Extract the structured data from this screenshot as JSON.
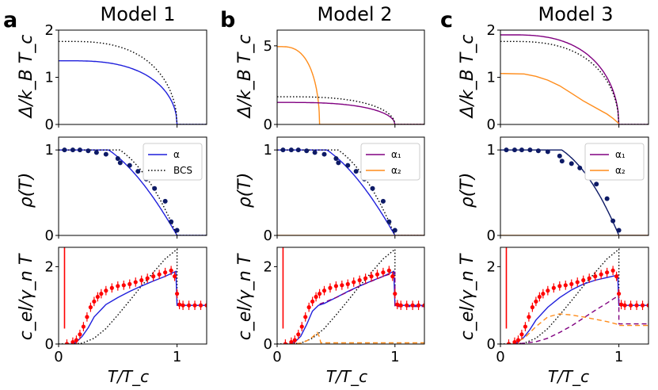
{
  "figure": {
    "columns": [
      {
        "panel_letter": "a",
        "title": "Model 1"
      },
      {
        "panel_letter": "b",
        "title": "Model 2"
      },
      {
        "panel_letter": "c",
        "title": "Model 3"
      }
    ],
    "y_labels": {
      "gap": "Δ/k_B T_c",
      "rho": "ρ(T)",
      "cel": "c_el/γ_n T"
    },
    "x_label": "T/T_c",
    "colors": {
      "alpha": "#1f1fdc",
      "alpha1": "#800080",
      "alpha2": "#ff8c1a",
      "bcs": "#000000",
      "data": "#0d1a66",
      "exp": "#ff0000"
    }
  },
  "chart_data": [
    {
      "type": "line",
      "panel": "a",
      "row": "gap",
      "xlim": [
        0,
        1.25
      ],
      "ylim": [
        0,
        2
      ],
      "xticks": [],
      "yticks": [
        0,
        1,
        2
      ],
      "series": [
        {
          "name": "α",
          "kind": "bcs_gap",
          "delta0": 1.35,
          "color": "alpha"
        },
        {
          "name": "BCS",
          "kind": "bcs_gap",
          "delta0": 1.76,
          "color": "bcs",
          "dash": "dot"
        }
      ]
    },
    {
      "type": "line",
      "panel": "b",
      "row": "gap",
      "xlim": [
        0,
        1.25
      ],
      "ylim": [
        0,
        6
      ],
      "xticks": [],
      "yticks": [
        0,
        5
      ],
      "series": [
        {
          "name": "α₂",
          "kind": "bcs_gap",
          "delta0": 4.95,
          "tc": 0.36,
          "color": "alpha2"
        },
        {
          "name": "α₁",
          "kind": "bcs_gap",
          "delta0": 1.4,
          "color": "alpha1"
        },
        {
          "name": "BCS",
          "kind": "bcs_gap",
          "delta0": 1.76,
          "color": "bcs",
          "dash": "dot"
        }
      ]
    },
    {
      "type": "line",
      "panel": "c",
      "row": "gap",
      "xlim": [
        0,
        1.25
      ],
      "ylim": [
        0,
        2
      ],
      "xticks": [],
      "yticks": [
        0,
        1,
        2
      ],
      "series": [
        {
          "name": "α₁",
          "kind": "bcs_gap",
          "delta0": 1.9,
          "color": "alpha1"
        },
        {
          "name": "BCS",
          "kind": "bcs_gap",
          "delta0": 1.76,
          "color": "bcs",
          "dash": "dot"
        },
        {
          "name": "α₂",
          "kind": "points",
          "x": [
            0,
            0.2,
            0.3,
            0.4,
            0.5,
            0.6,
            0.7,
            0.8,
            0.9,
            0.95,
            1.0
          ],
          "y": [
            1.08,
            1.07,
            1.02,
            0.94,
            0.82,
            0.66,
            0.5,
            0.36,
            0.22,
            0.13,
            0.02
          ],
          "color": "alpha2"
        }
      ]
    },
    {
      "type": "line",
      "panel": "a",
      "row": "rho",
      "xlim": [
        0,
        1.25
      ],
      "ylim": [
        0,
        1.15
      ],
      "xticks": [],
      "yticks": [
        0,
        1
      ],
      "legend": [
        {
          "label": "α",
          "color": "alpha"
        },
        {
          "label": "BCS",
          "color": "bcs",
          "dash": "dot"
        }
      ],
      "series": [
        {
          "name": "α",
          "kind": "rho",
          "p": 2.4,
          "q": 1.25,
          "color": "alpha"
        },
        {
          "name": "BCS",
          "kind": "rho",
          "p": 3.3,
          "q": 1.3,
          "color": "bcs",
          "dash": "dot"
        }
      ],
      "scatter": {
        "x": [
          0.05,
          0.12,
          0.18,
          0.25,
          0.32,
          0.4,
          0.5,
          0.52,
          0.6,
          0.67,
          0.74,
          0.81,
          0.9,
          0.95,
          1.0
        ],
        "y": [
          1.0,
          1.0,
          1.0,
          0.99,
          0.97,
          0.95,
          0.9,
          0.85,
          0.82,
          0.75,
          0.66,
          0.55,
          0.4,
          0.16,
          0.06
        ],
        "color": "data"
      }
    },
    {
      "type": "line",
      "panel": "b",
      "row": "rho",
      "xlim": [
        0,
        1.25
      ],
      "ylim": [
        0,
        1.15
      ],
      "xticks": [],
      "yticks": [
        0,
        1
      ],
      "legend": [
        {
          "label": "α₁",
          "color": "alpha1"
        },
        {
          "label": "α₂",
          "color": "alpha2"
        }
      ],
      "series": [
        {
          "name": "α₁",
          "kind": "rho",
          "p": 2.4,
          "q": 1.25,
          "color": "alpha"
        },
        {
          "name": "BCS",
          "kind": "rho",
          "p": 3.3,
          "q": 1.3,
          "color": "bcs",
          "dash": "dot"
        },
        {
          "name": "α₂",
          "kind": "points",
          "x": [
            0,
            1.25
          ],
          "y": [
            0,
            0
          ],
          "color": "alpha2"
        }
      ],
      "scatter": {
        "x": [
          0.05,
          0.12,
          0.18,
          0.25,
          0.32,
          0.4,
          0.5,
          0.52,
          0.6,
          0.67,
          0.74,
          0.81,
          0.9,
          0.95,
          1.0
        ],
        "y": [
          1.0,
          1.0,
          1.0,
          0.99,
          0.97,
          0.95,
          0.9,
          0.85,
          0.82,
          0.75,
          0.66,
          0.55,
          0.4,
          0.16,
          0.06
        ],
        "color": "data"
      }
    },
    {
      "type": "line",
      "panel": "c",
      "row": "rho",
      "xlim": [
        0,
        1.25
      ],
      "ylim": [
        0,
        1.15
      ],
      "xticks": [],
      "yticks": [
        0,
        1
      ],
      "legend": [
        {
          "label": "α₁",
          "color": "alpha1"
        },
        {
          "label": "α₂",
          "color": "alpha2"
        }
      ],
      "series": [
        {
          "name": "α₁",
          "kind": "rho",
          "p": 3.3,
          "q": 1.3,
          "color": "data"
        },
        {
          "name": "α₂",
          "kind": "points",
          "x": [
            0,
            1.25
          ],
          "y": [
            0,
            0
          ],
          "color": "alpha2"
        }
      ],
      "scatter": {
        "x": [
          0.05,
          0.12,
          0.18,
          0.25,
          0.32,
          0.4,
          0.5,
          0.52,
          0.6,
          0.67,
          0.74,
          0.81,
          0.9,
          0.95,
          1.0
        ],
        "y": [
          1.0,
          1.0,
          1.0,
          1.0,
          0.99,
          0.98,
          0.93,
          0.87,
          0.84,
          0.79,
          0.72,
          0.6,
          0.43,
          0.17,
          0.06
        ],
        "color": "data"
      }
    },
    {
      "type": "line",
      "panel": "a",
      "row": "cel",
      "xlim": [
        0,
        1.25
      ],
      "ylim": [
        0,
        2.5
      ],
      "xticks": [
        0,
        1
      ],
      "yticks": [
        0,
        2
      ],
      "series": [
        {
          "name": "BCS",
          "kind": "points",
          "x": [
            0,
            0.2,
            0.3,
            0.4,
            0.5,
            0.6,
            0.7,
            0.8,
            0.9,
            1.0,
            1.0,
            1.25
          ],
          "y": [
            0,
            0.02,
            0.15,
            0.4,
            0.75,
            1.12,
            1.5,
            1.85,
            2.2,
            2.45,
            1.0,
            1.0
          ],
          "color": "bcs",
          "dash": "dot"
        },
        {
          "name": "α",
          "kind": "points",
          "x": [
            0.1,
            0.15,
            0.2,
            0.25,
            0.3,
            0.4,
            0.5,
            0.6,
            0.7,
            0.8,
            0.9,
            0.99,
            1.0,
            1.25
          ],
          "y": [
            0,
            0.05,
            0.2,
            0.42,
            0.7,
            1.02,
            1.2,
            1.36,
            1.5,
            1.63,
            1.75,
            1.88,
            1.0,
            1.0
          ],
          "color": "alpha"
        }
      ],
      "exp": {
        "x": [
          0.07,
          0.12,
          0.15,
          0.18,
          0.21,
          0.24,
          0.27,
          0.3,
          0.33,
          0.36,
          0.4,
          0.45,
          0.5,
          0.55,
          0.6,
          0.65,
          0.7,
          0.75,
          0.8,
          0.85,
          0.9,
          0.95,
          0.98,
          1.0,
          1.02,
          1.05,
          1.1,
          1.15,
          1.2,
          1.25
        ],
        "y": [
          0,
          0.05,
          0.1,
          0.25,
          0.45,
          0.7,
          0.95,
          1.1,
          1.22,
          1.3,
          1.38,
          1.45,
          1.5,
          1.52,
          1.55,
          1.6,
          1.65,
          1.7,
          1.75,
          1.8,
          1.85,
          1.9,
          1.75,
          1.3,
          1.02,
          1.0,
          1.0,
          1.0,
          1.0,
          1.0
        ],
        "spike": {
          "x": 0.05,
          "y": [
            0.4,
            2.5
          ]
        },
        "color": "exp"
      }
    },
    {
      "type": "line",
      "panel": "b",
      "row": "cel",
      "xlim": [
        0,
        1.25
      ],
      "ylim": [
        0,
        2.5
      ],
      "xticks": [
        0,
        1
      ],
      "yticks": [
        0,
        2
      ],
      "series": [
        {
          "name": "BCS",
          "kind": "points",
          "x": [
            0,
            0.2,
            0.3,
            0.4,
            0.5,
            0.6,
            0.7,
            0.8,
            0.9,
            1.0,
            1.0,
            1.25
          ],
          "y": [
            0,
            0.02,
            0.15,
            0.4,
            0.75,
            1.12,
            1.5,
            1.85,
            2.2,
            2.45,
            1.0,
            1.0
          ],
          "color": "bcs",
          "dash": "dot"
        },
        {
          "name": "α₁",
          "kind": "points",
          "x": [
            0.1,
            0.15,
            0.2,
            0.25,
            0.3,
            0.35,
            0.4,
            0.5,
            0.6,
            0.7,
            0.8,
            0.9,
            0.99,
            1.0,
            1.25
          ],
          "y": [
            0,
            0.05,
            0.2,
            0.5,
            0.85,
            1.0,
            1.05,
            1.2,
            1.36,
            1.5,
            1.63,
            1.75,
            1.88,
            1.0,
            1.0
          ],
          "color": "alpha"
        },
        {
          "name": "α₁",
          "kind": "points",
          "x": [
            0.36,
            0.5,
            0.7,
            0.9,
            1.0,
            1.0,
            1.25
          ],
          "y": [
            1.03,
            1.2,
            1.5,
            1.75,
            1.85,
            0.97,
            0.97
          ],
          "color": "alpha1",
          "dash": "dash"
        },
        {
          "name": "α₂",
          "kind": "points",
          "x": [
            0.1,
            0.2,
            0.25,
            0.3,
            0.34,
            0.36,
            0.37,
            1.25
          ],
          "y": [
            0,
            0.02,
            0.08,
            0.18,
            0.3,
            0.18,
            0.03,
            0.03
          ],
          "color": "alpha2",
          "dash": "dash"
        }
      ],
      "exp": {
        "x": [
          0.07,
          0.12,
          0.15,
          0.18,
          0.21,
          0.24,
          0.27,
          0.3,
          0.33,
          0.36,
          0.4,
          0.45,
          0.5,
          0.55,
          0.6,
          0.65,
          0.7,
          0.75,
          0.8,
          0.85,
          0.9,
          0.95,
          0.98,
          1.0,
          1.02,
          1.05,
          1.1,
          1.15,
          1.2,
          1.25
        ],
        "y": [
          0,
          0.05,
          0.1,
          0.25,
          0.45,
          0.7,
          0.95,
          1.1,
          1.22,
          1.3,
          1.38,
          1.45,
          1.5,
          1.52,
          1.55,
          1.6,
          1.65,
          1.7,
          1.75,
          1.8,
          1.85,
          1.9,
          1.75,
          1.3,
          1.02,
          1.0,
          1.0,
          1.0,
          1.0,
          1.0
        ],
        "spike": {
          "x": 0.05,
          "y": [
            0.4,
            2.5
          ]
        },
        "color": "exp"
      }
    },
    {
      "type": "line",
      "panel": "c",
      "row": "cel",
      "xlim": [
        0,
        1.25
      ],
      "ylim": [
        0,
        2.5
      ],
      "xticks": [
        0,
        1
      ],
      "yticks": [
        0,
        2
      ],
      "series": [
        {
          "name": "BCS",
          "kind": "points",
          "x": [
            0,
            0.2,
            0.3,
            0.4,
            0.5,
            0.6,
            0.7,
            0.8,
            0.9,
            1.0,
            1.0,
            1.25
          ],
          "y": [
            0,
            0.02,
            0.15,
            0.4,
            0.75,
            1.12,
            1.5,
            1.85,
            2.2,
            2.45,
            1.0,
            1.0
          ],
          "color": "bcs",
          "dash": "dot"
        },
        {
          "name": "α",
          "kind": "points",
          "x": [
            0.1,
            0.15,
            0.2,
            0.25,
            0.3,
            0.4,
            0.5,
            0.6,
            0.7,
            0.8,
            0.9,
            0.99,
            1.0,
            1.25
          ],
          "y": [
            0,
            0.05,
            0.18,
            0.38,
            0.62,
            0.95,
            1.2,
            1.4,
            1.55,
            1.65,
            1.72,
            1.78,
            1.0,
            1.0
          ],
          "color": "alpha"
        },
        {
          "name": "α₁",
          "kind": "points",
          "x": [
            0.1,
            0.2,
            0.3,
            0.4,
            0.5,
            0.6,
            0.7,
            0.8,
            0.9,
            0.97,
            1.0,
            1.0,
            1.25
          ],
          "y": [
            0,
            0.02,
            0.06,
            0.15,
            0.3,
            0.47,
            0.67,
            0.87,
            1.06,
            1.2,
            1.15,
            0.52,
            0.52
          ],
          "color": "alpha1",
          "dash": "dash"
        },
        {
          "name": "α₂",
          "kind": "points",
          "x": [
            0.1,
            0.2,
            0.3,
            0.4,
            0.5,
            0.6,
            0.7,
            0.8,
            0.9,
            1.0,
            1.0,
            1.25
          ],
          "y": [
            0,
            0.15,
            0.45,
            0.7,
            0.78,
            0.75,
            0.7,
            0.64,
            0.58,
            0.5,
            0.48,
            0.48
          ],
          "color": "alpha2",
          "dash": "dash"
        }
      ],
      "exp": {
        "x": [
          0.07,
          0.12,
          0.15,
          0.18,
          0.21,
          0.24,
          0.27,
          0.3,
          0.33,
          0.36,
          0.4,
          0.45,
          0.5,
          0.55,
          0.6,
          0.65,
          0.7,
          0.75,
          0.8,
          0.85,
          0.9,
          0.95,
          0.98,
          1.0,
          1.02,
          1.05,
          1.1,
          1.15,
          1.2,
          1.25
        ],
        "y": [
          0,
          0.05,
          0.1,
          0.25,
          0.45,
          0.7,
          0.95,
          1.1,
          1.22,
          1.3,
          1.38,
          1.45,
          1.5,
          1.52,
          1.55,
          1.6,
          1.65,
          1.7,
          1.75,
          1.8,
          1.85,
          1.9,
          1.75,
          1.3,
          1.02,
          1.0,
          1.0,
          1.0,
          1.0,
          1.0
        ],
        "spike": {
          "x": 0.05,
          "y": [
            0.4,
            2.5
          ]
        },
        "color": "exp"
      }
    }
  ]
}
